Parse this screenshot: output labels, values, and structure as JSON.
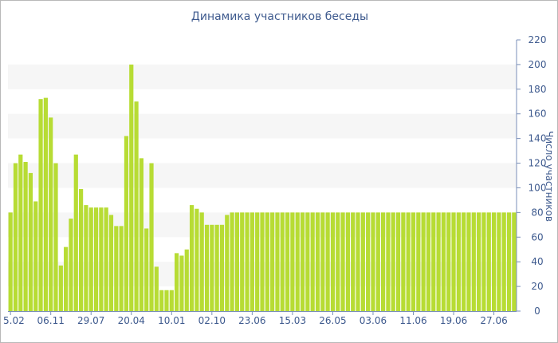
{
  "chart_data": {
    "type": "bar",
    "title": "Динамика участников беседы",
    "ylabel": "Число участников",
    "categories": [
      "5.02",
      null,
      null,
      null,
      null,
      null,
      null,
      null,
      "06.11",
      null,
      null,
      null,
      null,
      null,
      null,
      null,
      "29.07",
      null,
      null,
      null,
      null,
      null,
      null,
      null,
      "20.04",
      null,
      null,
      null,
      null,
      null,
      null,
      null,
      "10.01",
      null,
      null,
      null,
      null,
      null,
      null,
      null,
      "02.10",
      null,
      null,
      null,
      null,
      null,
      null,
      null,
      "23.06",
      null,
      null,
      null,
      null,
      null,
      null,
      null,
      "15.03",
      null,
      null,
      null,
      null,
      null,
      null,
      null,
      "26.05",
      null,
      null,
      null,
      null,
      null,
      null,
      null,
      "03.06",
      null,
      null,
      null,
      null,
      null,
      null,
      null,
      "11.06",
      null,
      null,
      null,
      null,
      null,
      null,
      null,
      "19.06",
      null,
      null,
      null,
      null,
      null,
      null,
      null,
      "27.06",
      null,
      null,
      null,
      null
    ],
    "values": [
      80,
      120,
      127,
      121,
      112,
      89,
      172,
      173,
      157,
      120,
      37,
      52,
      75,
      127,
      99,
      86,
      84,
      84,
      84,
      84,
      78,
      69,
      69,
      142,
      200,
      170,
      124,
      67,
      120,
      36,
      17,
      17,
      17,
      47,
      45,
      50,
      86,
      83,
      80,
      70,
      70,
      70,
      70,
      78,
      80,
      80,
      80,
      80,
      80,
      80,
      80,
      80,
      80,
      80,
      80,
      80,
      80,
      80,
      80,
      80,
      80,
      80,
      80,
      80,
      80,
      80,
      80,
      80,
      80,
      80,
      80,
      80,
      80,
      80,
      80,
      80,
      80,
      80,
      80,
      80,
      80,
      80,
      80,
      80,
      80,
      80,
      80,
      80,
      80,
      80,
      80,
      80,
      80,
      80,
      80,
      80,
      80,
      80,
      80,
      80,
      80
    ],
    "color": "#b7dc34",
    "ylim": [
      0,
      220
    ],
    "yticks": [
      0,
      20,
      40,
      60,
      80,
      100,
      120,
      140,
      160,
      180,
      200,
      220
    ],
    "grid": true
  }
}
